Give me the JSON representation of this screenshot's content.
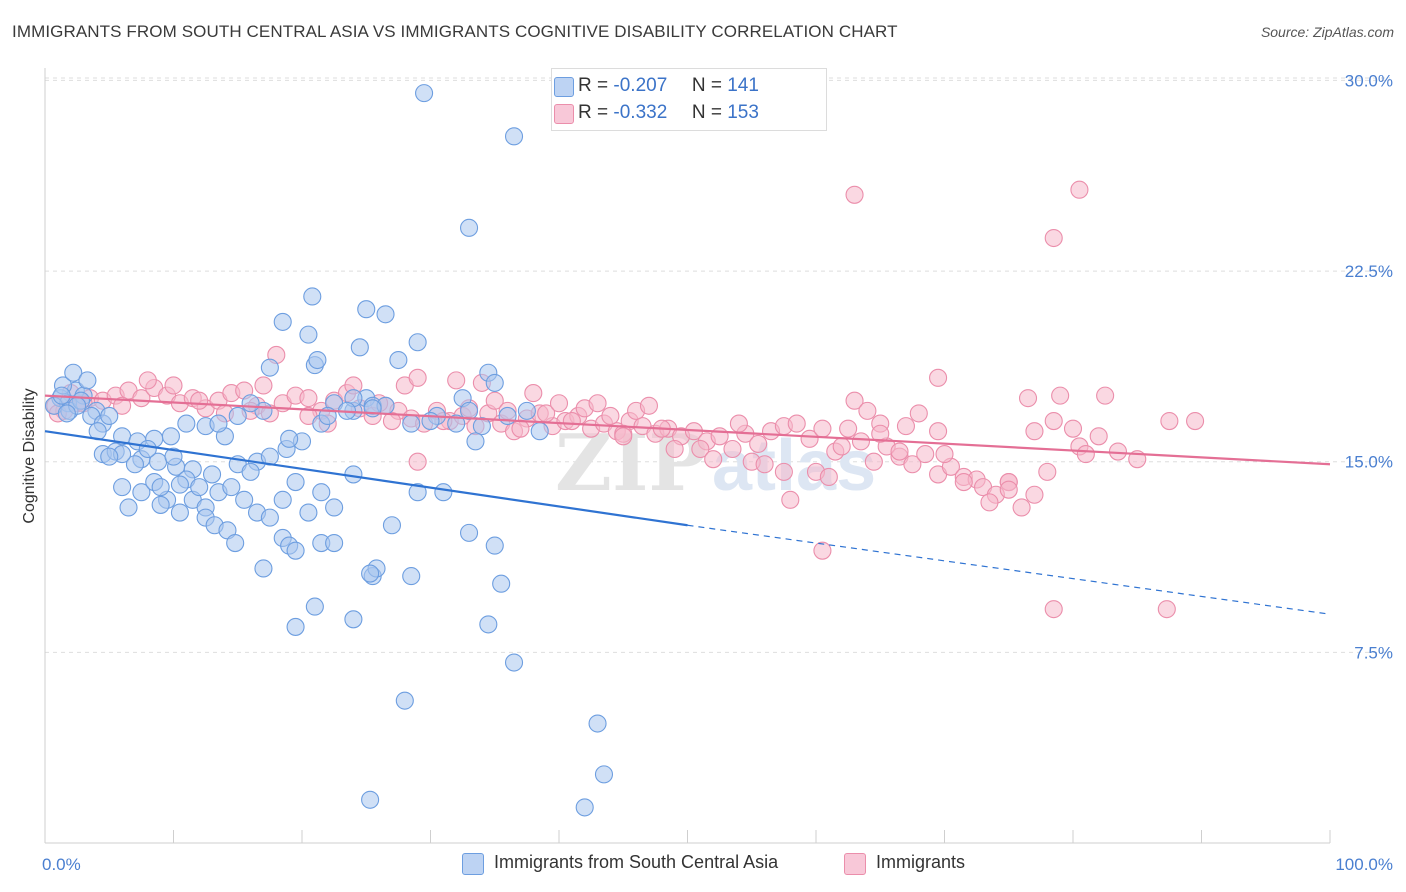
{
  "header": {
    "title": "IMMIGRANTS FROM SOUTH CENTRAL ASIA VS IMMIGRANTS COGNITIVE DISABILITY CORRELATION CHART",
    "source": "Source: ZipAtlas.com"
  },
  "legend": {
    "series1": {
      "r_label": "R =",
      "r_value": "-0.207",
      "n_label": "N =",
      "n_value": "141"
    },
    "series2": {
      "r_label": "R =",
      "r_value": "-0.332",
      "n_label": "N =",
      "n_value": "153"
    }
  },
  "colors": {
    "blue_fill": "#a9c6ef",
    "blue_stroke": "#6d9ee0",
    "blue_line": "#2f73d2",
    "pink_fill": "#f5b8cb",
    "pink_stroke": "#eb8eab",
    "pink_line": "#e46f95",
    "tick_text": "#4a7fd0",
    "grid": "#dedede"
  },
  "watermark": {
    "text1": "ZIP",
    "text2": "atlas"
  },
  "chart_data": {
    "type": "scatter",
    "title": "IMMIGRANTS FROM SOUTH CENTRAL ASIA VS IMMIGRANTS COGNITIVE DISABILITY CORRELATION CHART",
    "xlabel": "",
    "ylabel": "Cognitive Disability",
    "xlim": [
      0,
      100
    ],
    "ylim": [
      0,
      31
    ],
    "x_tick_labels": [
      "0.0%",
      "100.0%"
    ],
    "y_ticks": [
      7.5,
      15.0,
      22.5,
      30.0
    ],
    "y_tick_labels": [
      "7.5%",
      "15.0%",
      "22.5%",
      "30.0%"
    ],
    "series": [
      {
        "name": "Immigrants from South Central Asia",
        "color": "#6d9ee0",
        "trend": {
          "x0": 0,
          "y0": 16.2,
          "x1": 50,
          "y1": 12.5,
          "dashed_to_x": 100,
          "dashed_to_y": 9.0
        },
        "points": [
          [
            1.2,
            17.5
          ],
          [
            1.8,
            17.3
          ],
          [
            2.4,
            17.8
          ],
          [
            3.0,
            17.6
          ],
          [
            1.4,
            18.0
          ],
          [
            2.2,
            18.5
          ],
          [
            0.7,
            17.2
          ],
          [
            3.3,
            18.2
          ],
          [
            1.9,
            17.0
          ],
          [
            2.8,
            17.4
          ],
          [
            4.0,
            17.0
          ],
          [
            3.6,
            16.8
          ],
          [
            4.5,
            16.5
          ],
          [
            5.0,
            16.8
          ],
          [
            4.1,
            16.2
          ],
          [
            6.0,
            16.0
          ],
          [
            7.2,
            15.8
          ],
          [
            8.5,
            15.9
          ],
          [
            9.8,
            16.0
          ],
          [
            11.0,
            16.5
          ],
          [
            12.5,
            16.4
          ],
          [
            14.0,
            16.0
          ],
          [
            4.5,
            15.3
          ],
          [
            5.5,
            15.4
          ],
          [
            7.5,
            15.1
          ],
          [
            8.8,
            15.0
          ],
          [
            10.2,
            14.8
          ],
          [
            11.5,
            14.7
          ],
          [
            13.0,
            14.5
          ],
          [
            15.0,
            14.9
          ],
          [
            16.5,
            15.0
          ],
          [
            17.5,
            15.2
          ],
          [
            18.8,
            15.5
          ],
          [
            20.0,
            15.8
          ],
          [
            21.5,
            16.5
          ],
          [
            22.5,
            17.3
          ],
          [
            24.0,
            17.0
          ],
          [
            25.0,
            17.5
          ],
          [
            6.0,
            14.0
          ],
          [
            7.5,
            13.8
          ],
          [
            8.5,
            14.2
          ],
          [
            9.5,
            13.5
          ],
          [
            10.5,
            13.0
          ],
          [
            11.5,
            13.5
          ],
          [
            12.5,
            13.2
          ],
          [
            13.5,
            13.8
          ],
          [
            14.5,
            14.0
          ],
          [
            15.5,
            13.5
          ],
          [
            16.5,
            13.0
          ],
          [
            17.5,
            12.8
          ],
          [
            18.5,
            13.5
          ],
          [
            19.5,
            14.2
          ],
          [
            20.5,
            13.0
          ],
          [
            21.5,
            13.8
          ],
          [
            22.5,
            13.2
          ],
          [
            24.0,
            14.5
          ],
          [
            6.5,
            13.2
          ],
          [
            9.0,
            13.3
          ],
          [
            12.5,
            12.8
          ],
          [
            13.2,
            12.5
          ],
          [
            14.2,
            12.3
          ],
          [
            14.8,
            11.8
          ],
          [
            18.5,
            12.0
          ],
          [
            19.0,
            11.7
          ],
          [
            19.5,
            11.5
          ],
          [
            21.5,
            11.8
          ],
          [
            22.5,
            11.8
          ],
          [
            17.0,
            10.8
          ],
          [
            25.5,
            10.5
          ],
          [
            25.8,
            10.8
          ],
          [
            25.3,
            10.6
          ],
          [
            28.5,
            10.5
          ],
          [
            27.0,
            12.5
          ],
          [
            29.0,
            13.8
          ],
          [
            31.0,
            13.8
          ],
          [
            33.0,
            12.2
          ],
          [
            35.0,
            11.7
          ],
          [
            35.5,
            10.2
          ],
          [
            21.0,
            9.3
          ],
          [
            24.0,
            8.8
          ],
          [
            19.5,
            8.5
          ],
          [
            34.5,
            8.6
          ],
          [
            36.5,
            7.1
          ],
          [
            28.0,
            5.6
          ],
          [
            43.0,
            4.7
          ],
          [
            25.3,
            1.7
          ],
          [
            42.0,
            1.4
          ],
          [
            43.5,
            2.7
          ],
          [
            18.5,
            20.5
          ],
          [
            20.5,
            20.0
          ],
          [
            20.8,
            21.5
          ],
          [
            25.0,
            21.0
          ],
          [
            26.5,
            20.8
          ],
          [
            24.5,
            19.5
          ],
          [
            27.5,
            19.0
          ],
          [
            29.0,
            19.7
          ],
          [
            17.5,
            18.7
          ],
          [
            21.0,
            18.8
          ],
          [
            21.2,
            19.0
          ],
          [
            24.0,
            17.5
          ],
          [
            25.5,
            17.2
          ],
          [
            26.5,
            17.2
          ],
          [
            28.5,
            16.5
          ],
          [
            30.5,
            16.8
          ],
          [
            32.5,
            17.5
          ],
          [
            33.0,
            17.0
          ],
          [
            34.5,
            18.5
          ],
          [
            35.0,
            18.1
          ],
          [
            36.0,
            16.8
          ],
          [
            37.5,
            17.0
          ],
          [
            38.5,
            16.2
          ],
          [
            22.0,
            16.8
          ],
          [
            23.5,
            17.0
          ],
          [
            17.0,
            17.0
          ],
          [
            16.0,
            17.3
          ],
          [
            13.5,
            16.5
          ],
          [
            15.0,
            16.8
          ],
          [
            10.0,
            15.2
          ],
          [
            8.0,
            15.5
          ],
          [
            7.0,
            14.9
          ],
          [
            6.0,
            15.3
          ],
          [
            5.0,
            15.2
          ],
          [
            2.5,
            17.2
          ],
          [
            1.3,
            17.6
          ],
          [
            1.7,
            16.9
          ],
          [
            29.5,
            29.5
          ],
          [
            36.5,
            27.8
          ],
          [
            33.0,
            24.2
          ],
          [
            19.0,
            15.9
          ],
          [
            25.5,
            17.1
          ],
          [
            34.0,
            16.4
          ],
          [
            33.5,
            15.8
          ],
          [
            30.0,
            16.6
          ],
          [
            32.0,
            16.5
          ],
          [
            11.0,
            14.3
          ],
          [
            12.0,
            14.0
          ],
          [
            16.0,
            14.6
          ],
          [
            9.0,
            14.0
          ],
          [
            10.5,
            14.1
          ]
        ]
      },
      {
        "name": "Immigrants",
        "color": "#eb8eab",
        "trend": {
          "x0": 0,
          "y0": 17.6,
          "x1": 100,
          "y1": 14.9
        },
        "points": [
          [
            0.8,
            17.2
          ],
          [
            1.5,
            17.0
          ],
          [
            2.5,
            17.3
          ],
          [
            3.5,
            17.5
          ],
          [
            4.5,
            17.4
          ],
          [
            5.5,
            17.6
          ],
          [
            6.5,
            17.8
          ],
          [
            7.5,
            17.5
          ],
          [
            8.5,
            17.9
          ],
          [
            9.5,
            17.6
          ],
          [
            10.5,
            17.3
          ],
          [
            11.5,
            17.5
          ],
          [
            12.5,
            17.1
          ],
          [
            13.5,
            17.4
          ],
          [
            14.5,
            17.7
          ],
          [
            15.5,
            17.8
          ],
          [
            16.5,
            17.2
          ],
          [
            17.5,
            16.9
          ],
          [
            18.5,
            17.3
          ],
          [
            19.5,
            17.6
          ],
          [
            20.5,
            17.5
          ],
          [
            21.5,
            17.0
          ],
          [
            22.5,
            17.4
          ],
          [
            23.5,
            17.7
          ],
          [
            24.5,
            17.1
          ],
          [
            25.5,
            16.8
          ],
          [
            26.5,
            17.2
          ],
          [
            27.5,
            17.0
          ],
          [
            28.5,
            16.7
          ],
          [
            29.5,
            16.5
          ],
          [
            30.5,
            17.0
          ],
          [
            31.5,
            16.6
          ],
          [
            32.5,
            16.8
          ],
          [
            33.5,
            16.4
          ],
          [
            34.5,
            16.9
          ],
          [
            35.5,
            16.5
          ],
          [
            36.5,
            16.2
          ],
          [
            37.5,
            16.7
          ],
          [
            38.5,
            16.9
          ],
          [
            39.5,
            16.4
          ],
          [
            40.5,
            16.6
          ],
          [
            41.5,
            16.8
          ],
          [
            42.5,
            16.3
          ],
          [
            43.5,
            16.5
          ],
          [
            44.5,
            16.2
          ],
          [
            45.5,
            16.6
          ],
          [
            46.5,
            16.4
          ],
          [
            47.5,
            16.1
          ],
          [
            48.5,
            16.3
          ],
          [
            49.5,
            16.0
          ],
          [
            50.5,
            16.2
          ],
          [
            51.5,
            15.8
          ],
          [
            52.5,
            16.0
          ],
          [
            53.5,
            15.5
          ],
          [
            54.5,
            16.1
          ],
          [
            55.5,
            15.7
          ],
          [
            56.5,
            16.2
          ],
          [
            57.5,
            16.4
          ],
          [
            58.5,
            16.5
          ],
          [
            59.5,
            15.9
          ],
          [
            60.5,
            16.3
          ],
          [
            61.5,
            15.4
          ],
          [
            62.5,
            16.3
          ],
          [
            63.5,
            15.8
          ],
          [
            64.5,
            15.0
          ],
          [
            65.5,
            15.6
          ],
          [
            66.5,
            15.2
          ],
          [
            67.5,
            14.9
          ],
          [
            68.5,
            15.3
          ],
          [
            69.5,
            14.5
          ],
          [
            70.5,
            14.8
          ],
          [
            71.5,
            14.4
          ],
          [
            72.5,
            14.3
          ],
          [
            73.0,
            14.0
          ],
          [
            74.0,
            13.7
          ],
          [
            75.0,
            14.2
          ],
          [
            76.0,
            13.2
          ],
          [
            77.0,
            13.7
          ],
          [
            78.5,
            16.6
          ],
          [
            80.0,
            16.3
          ],
          [
            82.0,
            16.0
          ],
          [
            83.5,
            15.4
          ],
          [
            85.0,
            15.1
          ],
          [
            1.0,
            16.9
          ],
          [
            2.0,
            17.7
          ],
          [
            3.0,
            17.3
          ],
          [
            6.0,
            17.2
          ],
          [
            8.0,
            18.2
          ],
          [
            10.0,
            18.0
          ],
          [
            12.0,
            17.4
          ],
          [
            14.0,
            16.9
          ],
          [
            16.0,
            17.0
          ],
          [
            17.0,
            18.0
          ],
          [
            18.0,
            19.2
          ],
          [
            20.5,
            16.8
          ],
          [
            22.0,
            16.5
          ],
          [
            24.0,
            18.0
          ],
          [
            26.0,
            17.3
          ],
          [
            27.0,
            16.6
          ],
          [
            28.0,
            18.0
          ],
          [
            29.0,
            18.3
          ],
          [
            31.0,
            16.6
          ],
          [
            32.0,
            18.2
          ],
          [
            33.0,
            17.1
          ],
          [
            34.0,
            18.1
          ],
          [
            35.0,
            17.4
          ],
          [
            36.0,
            17.0
          ],
          [
            37.0,
            16.3
          ],
          [
            38.0,
            17.7
          ],
          [
            39.0,
            16.9
          ],
          [
            40.0,
            17.3
          ],
          [
            41.0,
            16.6
          ],
          [
            42.0,
            17.1
          ],
          [
            43.0,
            17.3
          ],
          [
            44.0,
            16.8
          ],
          [
            45.0,
            16.1
          ],
          [
            46.0,
            17.0
          ],
          [
            47.0,
            17.2
          ],
          [
            48.0,
            16.3
          ],
          [
            49.0,
            15.5
          ],
          [
            51.0,
            15.5
          ],
          [
            52.0,
            15.1
          ],
          [
            54.0,
            16.5
          ],
          [
            55.0,
            15.0
          ],
          [
            56.0,
            14.9
          ],
          [
            57.5,
            14.6
          ],
          [
            58.0,
            13.5
          ],
          [
            60.0,
            14.6
          ],
          [
            61.0,
            14.4
          ],
          [
            62.0,
            15.6
          ],
          [
            63.0,
            17.4
          ],
          [
            64.0,
            17.0
          ],
          [
            65.0,
            16.5
          ],
          [
            66.5,
            15.4
          ],
          [
            68.0,
            16.9
          ],
          [
            69.5,
            16.2
          ],
          [
            71.5,
            14.2
          ],
          [
            73.5,
            13.4
          ],
          [
            75.0,
            14.2
          ],
          [
            76.5,
            17.5
          ],
          [
            78.0,
            14.6
          ],
          [
            79.0,
            17.6
          ],
          [
            80.5,
            15.6
          ],
          [
            82.5,
            17.6
          ],
          [
            87.5,
            16.6
          ],
          [
            89.5,
            16.6
          ],
          [
            29.0,
            15.0
          ],
          [
            45.0,
            16.0
          ],
          [
            60.5,
            11.5
          ],
          [
            69.5,
            18.3
          ],
          [
            75.0,
            13.9
          ],
          [
            77.0,
            16.2
          ],
          [
            81.0,
            15.3
          ],
          [
            70.0,
            15.3
          ],
          [
            67.0,
            16.4
          ],
          [
            65.0,
            16.1
          ],
          [
            63.0,
            25.5
          ],
          [
            80.5,
            25.7
          ],
          [
            78.5,
            23.8
          ],
          [
            78.5,
            9.2
          ],
          [
            87.3,
            9.2
          ]
        ]
      }
    ]
  }
}
